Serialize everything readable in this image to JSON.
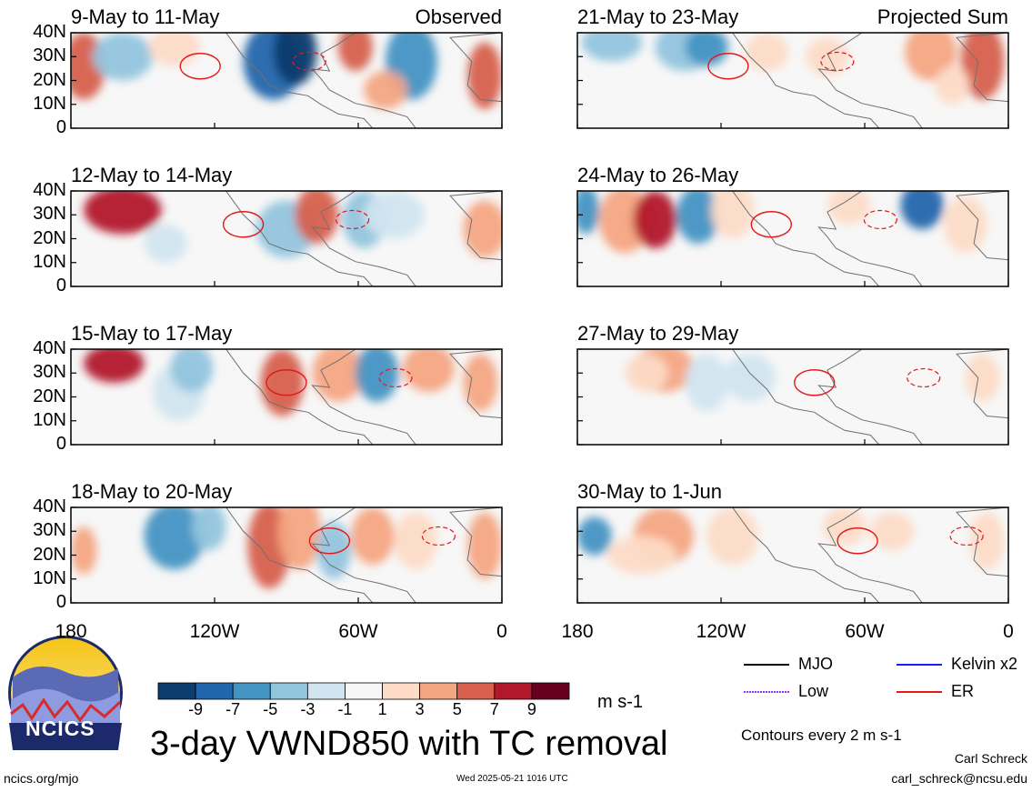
{
  "chart_data": {
    "type": "heatmap",
    "title": "3-day VWND850 with TC removal",
    "units": "m s-1",
    "contour_note": "Contours every 2 m s-1",
    "columns": [
      {
        "label": "Observed",
        "panels": [
          "9-May to 11-May",
          "12-May to 14-May",
          "15-May to 17-May",
          "18-May to 20-May"
        ]
      },
      {
        "label": "Projected Sum",
        "panels": [
          "21-May to 23-May",
          "24-May to 26-May",
          "27-May to 29-May",
          "30-May to 1-Jun"
        ]
      }
    ],
    "y_ticks": [
      "40N",
      "30N",
      "20N",
      "10N",
      "0"
    ],
    "x_ticks": [
      "180",
      "120W",
      "60W",
      "0"
    ],
    "colorbar": {
      "labels": [
        "-9",
        "-7",
        "-5",
        "-3",
        "-1",
        "1",
        "3",
        "5",
        "7",
        "9"
      ],
      "colors": [
        "#0d3c6e",
        "#2166ac",
        "#4393c3",
        "#92c5de",
        "#d1e5f0",
        "#f7f7f7",
        "#fddbc7",
        "#f4a582",
        "#d6604d",
        "#b2182b",
        "#67001f"
      ]
    },
    "legend": [
      {
        "label": "MJO",
        "color": "#000000",
        "dashed": false
      },
      {
        "label": "Kelvin x2",
        "color": "#1a1aff",
        "dashed": false
      },
      {
        "label": "Low",
        "color": "#9933ff",
        "dashed": true
      },
      {
        "label": "ER",
        "color": "#e31a1c",
        "dashed": false
      }
    ]
  },
  "footer": {
    "logo_text": "NCICS",
    "url": "ncics.org/mjo",
    "timestamp": "Wed 2025-05-21 1016 UTC",
    "author": "Carl Schreck",
    "email": "carl_schreck@ncsu.edu"
  }
}
